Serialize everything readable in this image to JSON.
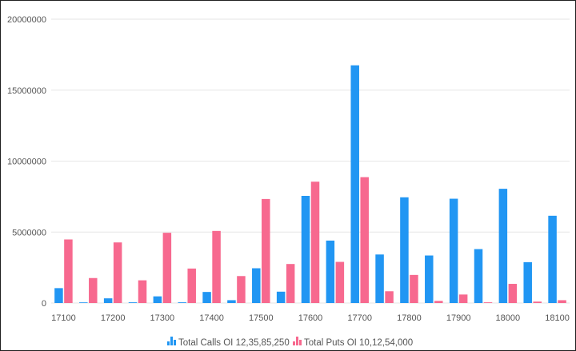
{
  "chart_data": {
    "type": "bar",
    "categories": [
      "17100",
      "17150",
      "17200",
      "17250",
      "17300",
      "17350",
      "17400",
      "17450",
      "17500",
      "17550",
      "17600",
      "17650",
      "17700",
      "17750",
      "17800",
      "17850",
      "17900",
      "17950",
      "18000",
      "18050",
      "18100"
    ],
    "x_tick_labels": [
      "17100",
      "",
      "17200",
      "",
      "17300",
      "",
      "17400",
      "",
      "17500",
      "",
      "17600",
      "",
      "17700",
      "",
      "17800",
      "",
      "17900",
      "",
      "18000",
      "",
      "18100"
    ],
    "series": [
      {
        "name": "Calls",
        "color": "#2196f3",
        "values": [
          1050000,
          30000,
          330000,
          50000,
          470000,
          50000,
          780000,
          200000,
          2450000,
          800000,
          7550000,
          4400000,
          16750000,
          3420000,
          7450000,
          3350000,
          7350000,
          3800000,
          8050000,
          2880000,
          6150000
        ]
      },
      {
        "name": "Puts",
        "color": "#f7698f",
        "values": [
          4480000,
          1760000,
          4270000,
          1600000,
          4950000,
          2430000,
          5080000,
          1900000,
          7330000,
          2750000,
          8550000,
          2900000,
          8870000,
          830000,
          1980000,
          150000,
          600000,
          50000,
          1350000,
          100000,
          200000
        ]
      }
    ],
    "y_ticks": [
      0,
      5000000,
      10000000,
      15000000,
      20000000
    ],
    "ylim": [
      0,
      20000000
    ],
    "grid": "horizontal",
    "legend_position": "bottom-center"
  },
  "legend": {
    "calls_label": "Total Calls OI 12,35,85,250",
    "puts_label": "Total Puts OI 10,12,54,000"
  }
}
